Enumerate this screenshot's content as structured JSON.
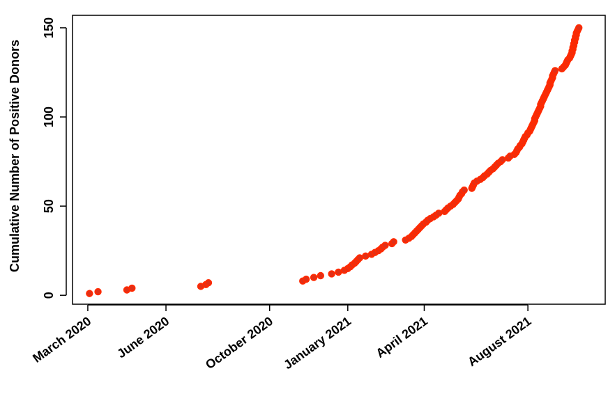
{
  "chart_data": {
    "type": "scatter",
    "title": "",
    "xlabel": "",
    "ylabel": "Cumulative Number of Positive Donors",
    "x_ticks": [
      {
        "date": "2020-03-01",
        "label": "March 2020"
      },
      {
        "date": "2020-06-01",
        "label": "June 2020"
      },
      {
        "date": "2020-10-01",
        "label": "October 2020"
      },
      {
        "date": "2021-01-01",
        "label": "January 2021"
      },
      {
        "date": "2021-04-01",
        "label": "April 2021"
      },
      {
        "date": "2021-08-01",
        "label": "August 2021"
      }
    ],
    "y_ticks": [
      0,
      50,
      100,
      150
    ],
    "xlim": [
      "2020-02-12",
      "2021-10-31"
    ],
    "ylim": [
      -5,
      157
    ],
    "grid": false,
    "legend": "none",
    "colors": {
      "point_stroke": "#ff2a00",
      "point_fill": "#e03018"
    },
    "series": [
      {
        "points": [
          [
            "2020-03-03",
            1
          ],
          [
            "2020-03-13",
            2
          ],
          [
            "2020-04-16",
            3
          ],
          [
            "2020-04-22",
            4
          ],
          [
            "2020-07-12",
            5
          ],
          [
            "2020-07-18",
            6
          ],
          [
            "2020-07-21",
            7
          ],
          [
            "2020-11-09",
            8
          ],
          [
            "2020-11-13",
            9
          ],
          [
            "2020-11-22",
            10
          ],
          [
            "2020-11-30",
            11
          ],
          [
            "2020-12-13",
            12
          ],
          [
            "2020-12-21",
            13
          ],
          [
            "2020-12-28",
            14
          ],
          [
            "2021-01-01",
            15
          ],
          [
            "2021-01-04",
            16
          ],
          [
            "2021-01-06",
            17
          ],
          [
            "2021-01-09",
            18
          ],
          [
            "2021-01-11",
            19
          ],
          [
            "2021-01-13",
            20
          ],
          [
            "2021-01-15",
            21
          ],
          [
            "2021-01-22",
            22
          ],
          [
            "2021-01-29",
            23
          ],
          [
            "2021-02-02",
            24
          ],
          [
            "2021-02-06",
            25
          ],
          [
            "2021-02-09",
            26
          ],
          [
            "2021-02-11",
            27
          ],
          [
            "2021-02-14",
            28
          ],
          [
            "2021-02-22",
            29
          ],
          [
            "2021-02-24",
            30
          ],
          [
            "2021-03-10",
            31
          ],
          [
            "2021-03-14",
            32
          ],
          [
            "2021-03-17",
            33
          ],
          [
            "2021-03-19",
            34
          ],
          [
            "2021-03-21",
            35
          ],
          [
            "2021-03-23",
            36
          ],
          [
            "2021-03-25",
            37
          ],
          [
            "2021-03-27",
            38
          ],
          [
            "2021-03-29",
            39
          ],
          [
            "2021-03-31",
            40
          ],
          [
            "2021-04-03",
            41
          ],
          [
            "2021-04-05",
            42
          ],
          [
            "2021-04-08",
            43
          ],
          [
            "2021-04-12",
            44
          ],
          [
            "2021-04-15",
            45
          ],
          [
            "2021-04-18",
            46
          ],
          [
            "2021-04-25",
            47
          ],
          [
            "2021-04-27",
            48
          ],
          [
            "2021-04-29",
            49
          ],
          [
            "2021-05-02",
            50
          ],
          [
            "2021-05-05",
            51
          ],
          [
            "2021-05-07",
            52
          ],
          [
            "2021-05-09",
            53
          ],
          [
            "2021-05-11",
            54
          ],
          [
            "2021-05-12",
            55
          ],
          [
            "2021-05-13",
            56
          ],
          [
            "2021-05-15",
            57
          ],
          [
            "2021-05-16",
            58
          ],
          [
            "2021-05-18",
            59
          ],
          [
            "2021-05-27",
            60
          ],
          [
            "2021-05-28",
            61
          ],
          [
            "2021-05-29",
            62
          ],
          [
            "2021-05-30",
            63
          ],
          [
            "2021-06-02",
            64
          ],
          [
            "2021-06-06",
            65
          ],
          [
            "2021-06-09",
            66
          ],
          [
            "2021-06-11",
            67
          ],
          [
            "2021-06-14",
            68
          ],
          [
            "2021-06-16",
            69
          ],
          [
            "2021-06-18",
            70
          ],
          [
            "2021-06-21",
            71
          ],
          [
            "2021-06-23",
            72
          ],
          [
            "2021-06-25",
            73
          ],
          [
            "2021-06-27",
            74
          ],
          [
            "2021-06-30",
            75
          ],
          [
            "2021-07-02",
            76
          ],
          [
            "2021-07-09",
            77
          ],
          [
            "2021-07-11",
            78
          ],
          [
            "2021-07-16",
            79
          ],
          [
            "2021-07-18",
            80
          ],
          [
            "2021-07-19",
            81
          ],
          [
            "2021-07-20",
            82
          ],
          [
            "2021-07-22",
            83
          ],
          [
            "2021-07-23",
            84
          ],
          [
            "2021-07-25",
            85
          ],
          [
            "2021-07-26",
            86
          ],
          [
            "2021-07-27",
            87
          ],
          [
            "2021-07-28",
            88
          ],
          [
            "2021-07-29",
            89
          ],
          [
            "2021-07-31",
            90
          ],
          [
            "2021-08-01",
            91
          ],
          [
            "2021-08-03",
            92
          ],
          [
            "2021-08-04",
            93
          ],
          [
            "2021-08-05",
            94
          ],
          [
            "2021-08-06",
            95
          ],
          [
            "2021-08-07",
            96
          ],
          [
            "2021-08-08",
            97
          ],
          [
            "2021-08-09",
            98
          ],
          [
            "2021-08-09",
            99
          ],
          [
            "2021-08-10",
            100
          ],
          [
            "2021-08-11",
            101
          ],
          [
            "2021-08-12",
            102
          ],
          [
            "2021-08-13",
            103
          ],
          [
            "2021-08-14",
            104
          ],
          [
            "2021-08-15",
            105
          ],
          [
            "2021-08-16",
            106
          ],
          [
            "2021-08-16",
            107
          ],
          [
            "2021-08-17",
            108
          ],
          [
            "2021-08-18",
            109
          ],
          [
            "2021-08-19",
            110
          ],
          [
            "2021-08-20",
            111
          ],
          [
            "2021-08-21",
            112
          ],
          [
            "2021-08-22",
            113
          ],
          [
            "2021-08-23",
            114
          ],
          [
            "2021-08-24",
            115
          ],
          [
            "2021-08-25",
            116
          ],
          [
            "2021-08-26",
            117
          ],
          [
            "2021-08-27",
            118
          ],
          [
            "2021-08-27",
            119
          ],
          [
            "2021-08-28",
            120
          ],
          [
            "2021-08-29",
            121
          ],
          [
            "2021-08-30",
            122
          ],
          [
            "2021-08-30",
            123
          ],
          [
            "2021-08-31",
            124
          ],
          [
            "2021-09-01",
            125
          ],
          [
            "2021-09-02",
            126
          ],
          [
            "2021-09-10",
            127
          ],
          [
            "2021-09-12",
            128
          ],
          [
            "2021-09-14",
            129
          ],
          [
            "2021-09-15",
            130
          ],
          [
            "2021-09-16",
            131
          ],
          [
            "2021-09-17",
            132
          ],
          [
            "2021-09-19",
            133
          ],
          [
            "2021-09-20",
            134
          ],
          [
            "2021-09-21",
            135
          ],
          [
            "2021-09-22",
            136
          ],
          [
            "2021-09-22",
            137
          ],
          [
            "2021-09-23",
            138
          ],
          [
            "2021-09-23",
            139
          ],
          [
            "2021-09-24",
            140
          ],
          [
            "2021-09-24",
            141
          ],
          [
            "2021-09-25",
            142
          ],
          [
            "2021-09-25",
            143
          ],
          [
            "2021-09-26",
            144
          ],
          [
            "2021-09-26",
            145
          ],
          [
            "2021-09-27",
            146
          ],
          [
            "2021-09-27",
            147
          ],
          [
            "2021-09-28",
            148
          ],
          [
            "2021-09-29",
            149
          ],
          [
            "2021-09-30",
            150
          ]
        ]
      }
    ]
  }
}
